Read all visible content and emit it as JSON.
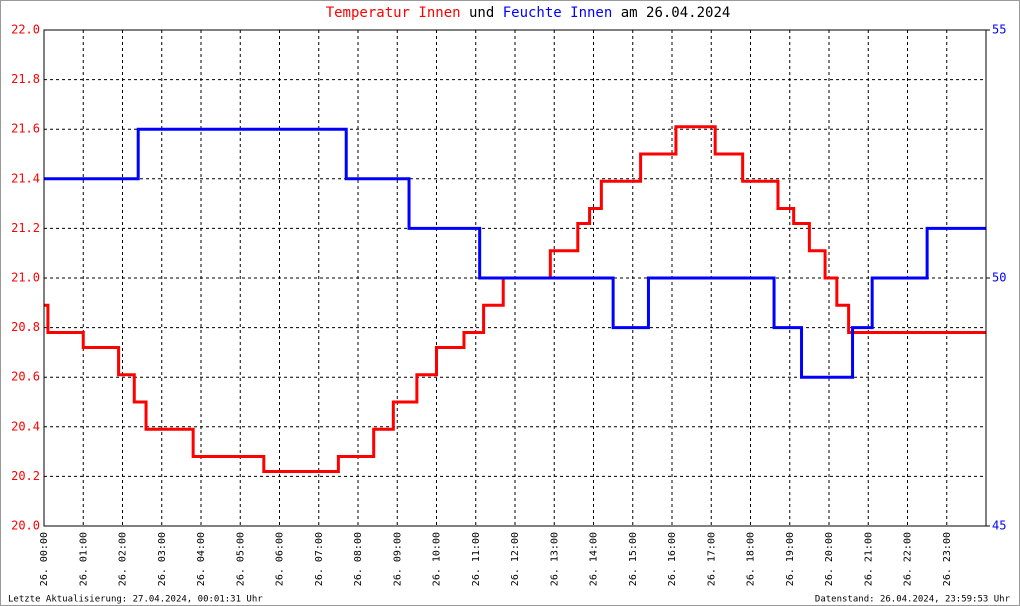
{
  "chart_data": {
    "type": "line",
    "title_parts": [
      {
        "text": "Temperatur Innen",
        "color": "#ff0000"
      },
      {
        "text": "und",
        "color": "#000000"
      },
      {
        "text": "Feuchte Innen",
        "color": "#0000ff"
      },
      {
        "text": "am 26.04.2024",
        "color": "#000000"
      }
    ],
    "footer_left": "Letzte Aktualisierung: 27.04.2024, 00:01:31 Uhr",
    "footer_right": "Datenstand: 26.04.2024, 23:59:53 Uhr",
    "xlim": [
      0,
      24
    ],
    "xticks": [
      {
        "value": 0,
        "label": "26. 00:00"
      },
      {
        "value": 1,
        "label": "26. 01:00"
      },
      {
        "value": 2,
        "label": "26. 02:00"
      },
      {
        "value": 3,
        "label": "26. 03:00"
      },
      {
        "value": 4,
        "label": "26. 04:00"
      },
      {
        "value": 5,
        "label": "26. 05:00"
      },
      {
        "value": 6,
        "label": "26. 06:00"
      },
      {
        "value": 7,
        "label": "26. 07:00"
      },
      {
        "value": 8,
        "label": "26. 08:00"
      },
      {
        "value": 9,
        "label": "26. 09:00"
      },
      {
        "value": 10,
        "label": "26. 10:00"
      },
      {
        "value": 11,
        "label": "26. 11:00"
      },
      {
        "value": 12,
        "label": "26. 12:00"
      },
      {
        "value": 13,
        "label": "26. 13:00"
      },
      {
        "value": 14,
        "label": "26. 14:00"
      },
      {
        "value": 15,
        "label": "26. 15:00"
      },
      {
        "value": 16,
        "label": "26. 16:00"
      },
      {
        "value": 17,
        "label": "26. 17:00"
      },
      {
        "value": 18,
        "label": "26. 18:00"
      },
      {
        "value": 19,
        "label": "26. 19:00"
      },
      {
        "value": 20,
        "label": "26. 20:00"
      },
      {
        "value": 21,
        "label": "26. 21:00"
      },
      {
        "value": 22,
        "label": "26. 22:00"
      },
      {
        "value": 23,
        "label": "26. 23:00"
      }
    ],
    "ylim": [
      20,
      22
    ],
    "yticks": [
      {
        "value": 20,
        "label": "20.0"
      },
      20.2,
      20.4,
      20.6,
      20.8,
      {
        "value": 21,
        "label": "21.0"
      },
      21.2,
      21.4,
      21.6,
      21.8,
      {
        "value": 22,
        "label": "22.0"
      }
    ],
    "y2lim": [
      45,
      55
    ],
    "y2ticks": [
      45,
      50,
      55
    ],
    "grid": true,
    "series": [
      {
        "name": "Temperatur Innen",
        "color": "#ff0000",
        "axis": "y",
        "x": [
          0,
          0.1,
          0.1,
          1.0,
          1.0,
          1.9,
          1.9,
          2.3,
          2.3,
          2.6,
          2.6,
          3.8,
          3.8,
          5.6,
          5.6,
          7.5,
          7.5,
          8.4,
          8.4,
          8.9,
          8.9,
          9.5,
          9.5,
          10.0,
          10.0,
          10.7,
          10.7,
          11.2,
          11.2,
          11.7,
          11.7,
          12.9,
          12.9,
          13.6,
          13.6,
          13.9,
          13.9,
          14.2,
          14.2,
          15.2,
          15.2,
          16.1,
          16.1,
          17.1,
          17.1,
          17.8,
          17.8,
          18.7,
          18.7,
          19.1,
          19.1,
          19.5,
          19.5,
          19.9,
          19.9,
          20.2,
          20.2,
          20.5,
          20.5,
          24
        ],
        "values": [
          20.89,
          20.89,
          20.78,
          20.78,
          20.72,
          20.72,
          20.61,
          20.61,
          20.5,
          20.5,
          20.39,
          20.39,
          20.28,
          20.28,
          20.22,
          20.22,
          20.28,
          20.28,
          20.39,
          20.39,
          20.5,
          20.5,
          20.61,
          20.61,
          20.72,
          20.72,
          20.78,
          20.78,
          20.89,
          20.89,
          21.0,
          21.0,
          21.11,
          21.11,
          21.22,
          21.22,
          21.28,
          21.28,
          21.39,
          21.39,
          21.5,
          21.5,
          21.61,
          21.61,
          21.5,
          21.5,
          21.39,
          21.39,
          21.28,
          21.28,
          21.22,
          21.22,
          21.11,
          21.11,
          21.0,
          21.0,
          20.89,
          20.89,
          20.78,
          20.78
        ]
      },
      {
        "name": "Feuchte Innen",
        "color": "#0000ff",
        "axis": "y2",
        "x": [
          0,
          2.4,
          2.4,
          7.7,
          7.7,
          9.3,
          9.3,
          11.1,
          11.1,
          14.5,
          14.5,
          15.4,
          15.4,
          18.6,
          18.6,
          19.3,
          19.3,
          20.6,
          20.6,
          21.1,
          21.1,
          22.5,
          22.5,
          24
        ],
        "values": [
          52,
          52,
          53,
          53,
          52,
          52,
          51,
          51,
          50,
          50,
          49,
          49,
          50,
          50,
          49,
          49,
          48,
          48,
          49,
          49,
          50,
          50,
          51,
          51
        ]
      }
    ]
  }
}
